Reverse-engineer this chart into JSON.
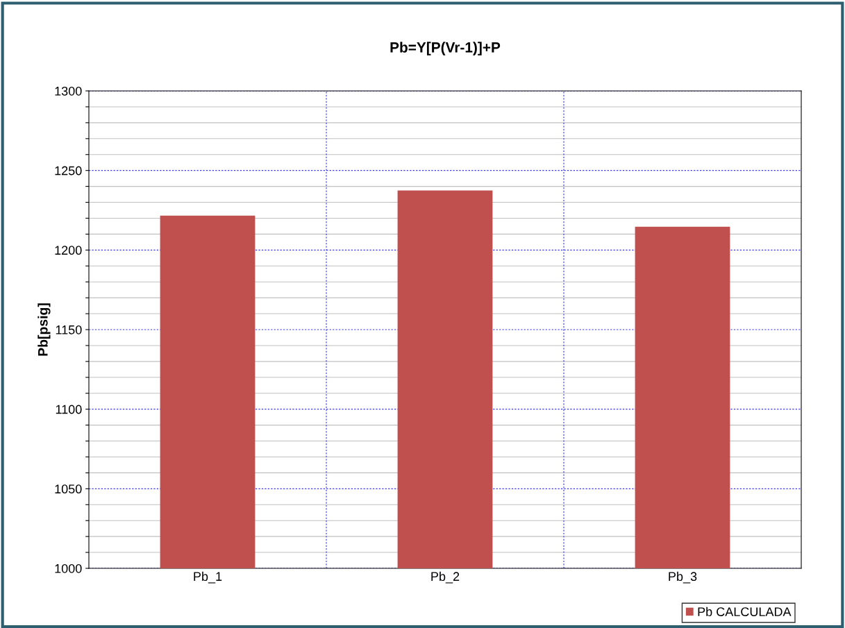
{
  "chart_data": {
    "type": "bar",
    "title": "Pb=Y[P(Vr-1)]+P",
    "ylabel": "Pb[psig]",
    "categories": [
      "Pb_1",
      "Pb_2",
      "Pb_3"
    ],
    "series": [
      {
        "name": "Pb CALCULADA",
        "color": "#c0504d",
        "values": [
          1221.6,
          1237.4,
          1214.6
        ]
      }
    ],
    "ylim": [
      1000,
      1300
    ],
    "yticks": [
      1000,
      {
        "value": 1010,
        "label": null
      },
      {
        "value": 1020,
        "label": null
      },
      {
        "value": 1030,
        "label": null
      },
      {
        "value": 1040,
        "label": null
      },
      1050,
      {
        "value": 1060,
        "label": null
      },
      {
        "value": 1070,
        "label": null
      },
      {
        "value": 1080,
        "label": null
      },
      {
        "value": 1090,
        "label": null
      },
      1100,
      {
        "value": 1110,
        "label": null
      },
      {
        "value": 1120,
        "label": null
      },
      {
        "value": 1130,
        "label": null
      },
      {
        "value": 1140,
        "label": null
      },
      1150,
      {
        "value": 1160,
        "label": null
      },
      {
        "value": 1170,
        "label": null
      },
      {
        "value": 1180,
        "label": null
      },
      {
        "value": 1190,
        "label": null
      },
      1200,
      {
        "value": 1210,
        "label": null
      },
      {
        "value": 1220,
        "label": null
      },
      {
        "value": 1230,
        "label": null
      },
      {
        "value": 1240,
        "label": null
      },
      1250,
      {
        "value": 1260,
        "label": null
      },
      {
        "value": 1270,
        "label": null
      },
      {
        "value": 1280,
        "label": null
      },
      {
        "value": 1290,
        "label": null
      },
      1300
    ],
    "grid": true,
    "legend": "bottom right"
  }
}
